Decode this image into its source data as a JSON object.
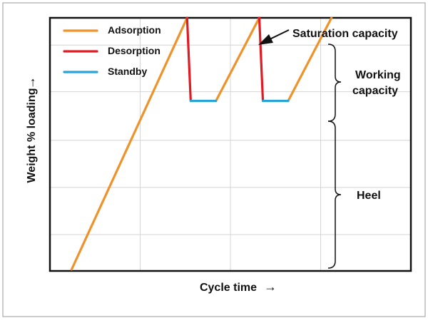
{
  "chart_data": {
    "type": "line",
    "title": "",
    "xlabel": "Cycle time",
    "xlabel_arrow": "→",
    "ylabel": "Weight % loading",
    "ylabel_arrow": "→",
    "xlim": [
      0,
      100
    ],
    "ylim": [
      0,
      100
    ],
    "grid": true,
    "legend_position": "top-left",
    "series": [
      {
        "name": "Adsorption",
        "color": "#f0922a",
        "segments": [
          [
            [
              6,
              0
            ],
            [
              38,
              100
            ]
          ],
          [
            [
              46,
              67
            ],
            [
              58,
              100
            ]
          ],
          [
            [
              66,
              67
            ],
            [
              78,
              100
            ]
          ]
        ]
      },
      {
        "name": "Desorption",
        "color": "#e01b24",
        "segments": [
          [
            [
              38,
              100
            ],
            [
              39,
              67
            ]
          ],
          [
            [
              58,
              100
            ],
            [
              59,
              67
            ]
          ]
        ]
      },
      {
        "name": "Standby",
        "color": "#29a3d6",
        "segments": [
          [
            [
              39,
              67
            ],
            [
              46,
              67
            ]
          ],
          [
            [
              59,
              67
            ],
            [
              66,
              67
            ]
          ]
        ]
      }
    ],
    "annotations": [
      {
        "text": "Saturation capacity",
        "points_to": [
          58,
          100
        ]
      },
      {
        "text": "Working",
        "text2": "capacity",
        "range": [
          67,
          100
        ]
      },
      {
        "text": "Heel",
        "range": [
          0,
          67
        ]
      }
    ]
  }
}
